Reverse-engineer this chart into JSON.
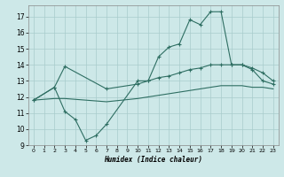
{
  "xlabel": "Humidex (Indice chaleur)",
  "bg_color": "#cde8e8",
  "grid_color": "#a8cccc",
  "line_color": "#2e6e62",
  "xlim_min": -0.5,
  "xlim_max": 23.5,
  "ylim_min": 9.0,
  "ylim_max": 17.7,
  "yticks": [
    9,
    10,
    11,
    12,
    13,
    14,
    15,
    16,
    17
  ],
  "xticks": [
    0,
    1,
    2,
    3,
    4,
    5,
    6,
    7,
    8,
    9,
    10,
    11,
    12,
    13,
    14,
    15,
    16,
    17,
    18,
    19,
    20,
    21,
    22,
    23
  ],
  "line1_x": [
    0,
    2,
    3,
    4,
    5,
    6,
    7,
    10,
    11,
    12,
    13,
    14,
    15,
    16,
    17,
    18,
    19,
    20,
    21,
    22,
    23
  ],
  "line1_y": [
    11.8,
    12.6,
    11.1,
    10.6,
    9.3,
    9.6,
    10.3,
    13.0,
    13.0,
    14.5,
    15.1,
    15.3,
    16.8,
    16.5,
    17.3,
    17.3,
    14.0,
    14.0,
    13.7,
    13.0,
    12.8
  ],
  "line2_x": [
    0,
    2,
    3,
    7,
    10,
    11,
    12,
    13,
    14,
    15,
    16,
    17,
    18,
    19,
    20,
    21,
    22,
    23
  ],
  "line2_y": [
    11.8,
    12.6,
    13.9,
    12.5,
    12.8,
    13.0,
    13.2,
    13.3,
    13.5,
    13.7,
    13.8,
    14.0,
    14.0,
    14.0,
    14.0,
    13.8,
    13.5,
    13.0
  ],
  "line3_x": [
    0,
    2,
    3,
    7,
    10,
    11,
    12,
    13,
    14,
    15,
    16,
    17,
    18,
    19,
    20,
    21,
    22,
    23
  ],
  "line3_y": [
    11.8,
    11.9,
    11.9,
    11.7,
    11.9,
    12.0,
    12.1,
    12.2,
    12.3,
    12.4,
    12.5,
    12.6,
    12.7,
    12.7,
    12.7,
    12.6,
    12.6,
    12.5
  ]
}
